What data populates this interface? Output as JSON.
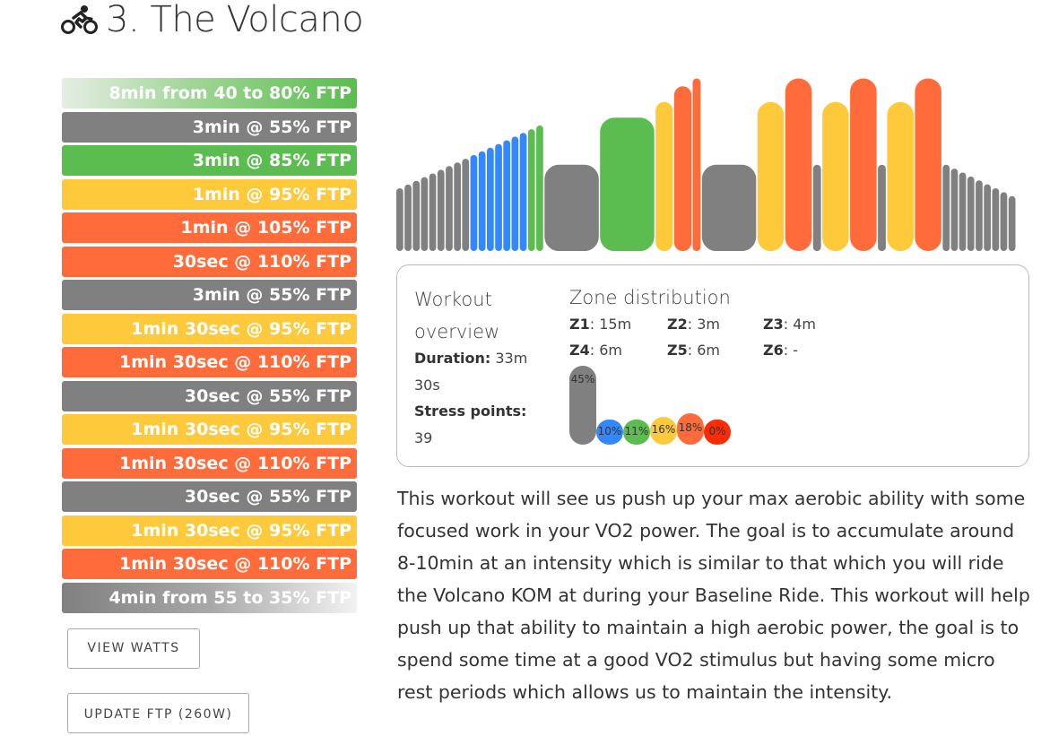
{
  "title": {
    "text": "3. The Volcano",
    "icon": "cyclist-icon"
  },
  "colors": {
    "gray": "#808080",
    "blue": "#3388ff",
    "green": "#5bbd4f",
    "yellow": "#ffc93c",
    "orange": "#ff6b3a",
    "red": "#ff2a00"
  },
  "intervals": [
    {
      "label": "8min from 40 to 80% FTP",
      "zone": "ramp-up"
    },
    {
      "label": "3min @ 55% FTP",
      "zone": "gray"
    },
    {
      "label": "3min @ 85% FTP",
      "zone": "green"
    },
    {
      "label": "1min @ 95% FTP",
      "zone": "yellow"
    },
    {
      "label": "1min @ 105% FTP",
      "zone": "orange"
    },
    {
      "label": "30sec @ 110% FTP",
      "zone": "orange"
    },
    {
      "label": "3min @ 55% FTP",
      "zone": "gray"
    },
    {
      "label": "1min 30sec @ 95% FTP",
      "zone": "yellow"
    },
    {
      "label": "1min 30sec @ 110% FTP",
      "zone": "orange"
    },
    {
      "label": "30sec @ 55% FTP",
      "zone": "gray"
    },
    {
      "label": "1min 30sec @ 95% FTP",
      "zone": "yellow"
    },
    {
      "label": "1min 30sec @ 110% FTP",
      "zone": "orange"
    },
    {
      "label": "30sec @ 55% FTP",
      "zone": "gray"
    },
    {
      "label": "1min 30sec @ 95% FTP",
      "zone": "yellow"
    },
    {
      "label": "1min 30sec @ 110% FTP",
      "zone": "orange"
    },
    {
      "label": "4min from 55 to 35% FTP",
      "zone": "ramp-down"
    }
  ],
  "buttons": {
    "view_watts": "VIEW WATTS",
    "update_ftp": "UPDATE FTP (260W)"
  },
  "overview": {
    "heading": "Workout overview",
    "duration_label": "Duration:",
    "duration_value": " 33m 30s",
    "stress_label": "Stress points:",
    "stress_value": " 39"
  },
  "zone_distribution": {
    "heading": "Zone distribution",
    "zones": [
      {
        "label": "Z1",
        "value": "15m"
      },
      {
        "label": "Z2",
        "value": "3m"
      },
      {
        "label": "Z3",
        "value": "4m"
      },
      {
        "label": "Z4",
        "value": "6m"
      },
      {
        "label": "Z5",
        "value": "6m"
      },
      {
        "label": "Z6",
        "value": "-"
      }
    ],
    "bars": [
      {
        "pct_label": "45%",
        "value": 45,
        "color": "#808080"
      },
      {
        "pct_label": "10%",
        "value": 10,
        "color": "#3388ff"
      },
      {
        "pct_label": "11%",
        "value": 11,
        "color": "#5bbd4f"
      },
      {
        "pct_label": "16%",
        "value": 16,
        "color": "#ffc93c"
      },
      {
        "pct_label": "18%",
        "value": 18,
        "color": "#ff6b3a"
      },
      {
        "pct_label": "0%",
        "value": 0,
        "color": "#ff2a00"
      }
    ]
  },
  "workout_profile": {
    "segments": [
      {
        "minutes": 8,
        "from": 40,
        "to": 80
      },
      {
        "minutes": 3,
        "power": 55
      },
      {
        "minutes": 3,
        "power": 85
      },
      {
        "minutes": 1,
        "power": 95
      },
      {
        "minutes": 1,
        "power": 105
      },
      {
        "minutes": 0.5,
        "power": 110
      },
      {
        "minutes": 3,
        "power": 55
      },
      {
        "minutes": 1.5,
        "power": 95
      },
      {
        "minutes": 1.5,
        "power": 110
      },
      {
        "minutes": 0.5,
        "power": 55
      },
      {
        "minutes": 1.5,
        "power": 95
      },
      {
        "minutes": 1.5,
        "power": 110
      },
      {
        "minutes": 0.5,
        "power": 55
      },
      {
        "minutes": 1.5,
        "power": 95
      },
      {
        "minutes": 1.5,
        "power": 110
      },
      {
        "minutes": 4,
        "from": 55,
        "to": 35
      }
    ]
  },
  "description": "This workout will see us push up your max aerobic ability with some focused work in your VO2 power. The goal is to accumulate around 8-10min at an intensity which is similar to that which you will ride the Volcano KOM at during your Baseline Ride. This workout will help push up that ability to maintain a high aerobic power, the goal is to spend some time at a good VO2 stimulus but having some micro rest periods which allows us to maintain the intensity."
}
